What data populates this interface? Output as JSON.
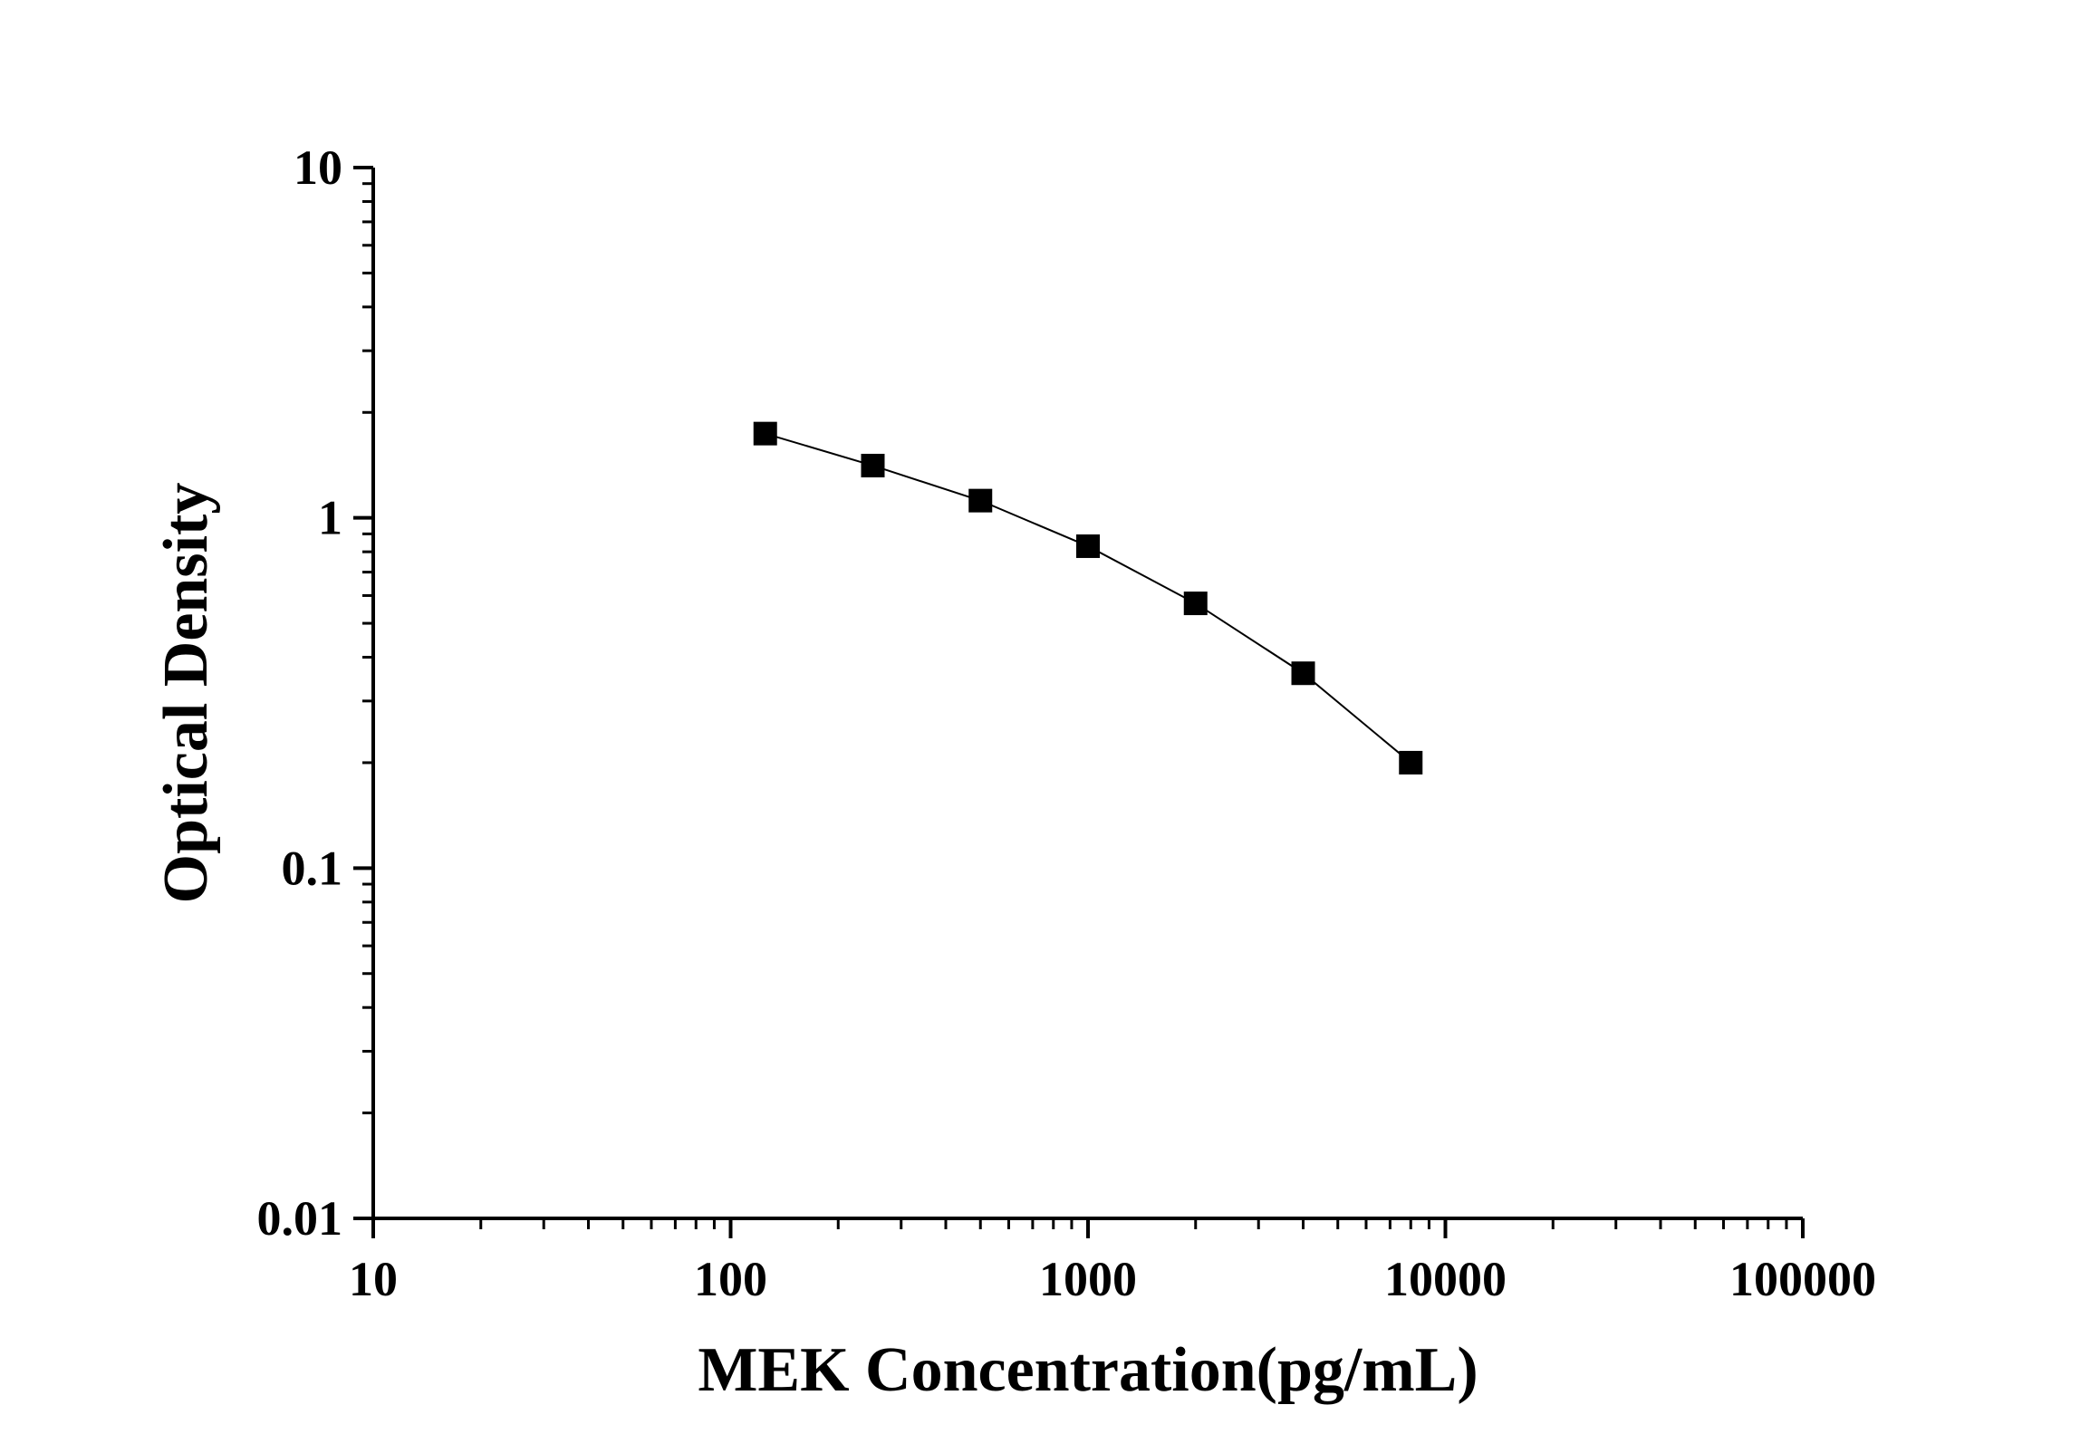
{
  "chart_data": {
    "type": "line",
    "title": "",
    "xlabel": "MEK Concentration(pg/mL)",
    "ylabel": "Optical Density",
    "x_scale": "log",
    "y_scale": "log",
    "xlim": [
      10,
      100000
    ],
    "ylim": [
      0.01,
      10
    ],
    "x_ticks": [
      "10",
      "100",
      "1000",
      "10000",
      "100000"
    ],
    "y_ticks": [
      "0.01",
      "0.1",
      "1",
      "10"
    ],
    "grid": false,
    "legend": "none",
    "marker": "square",
    "color": "#000000",
    "series": [
      {
        "x": [
          125,
          250,
          500,
          1000,
          2000,
          4000,
          8000
        ],
        "y": [
          1.74,
          1.41,
          1.12,
          0.83,
          0.57,
          0.36,
          0.2
        ]
      }
    ]
  }
}
